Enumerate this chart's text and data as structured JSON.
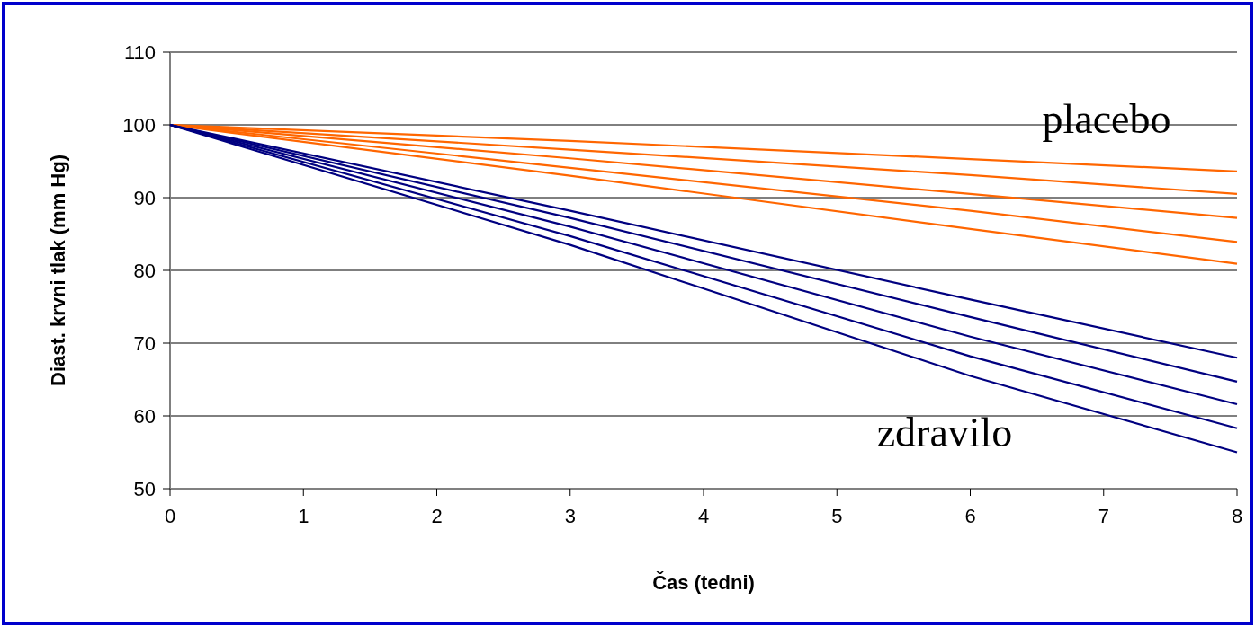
{
  "chart_data": {
    "type": "line",
    "xlabel": "Čas (tedni)",
    "ylabel": "Diast. krvni tlak (mm Hg)",
    "x": [
      0,
      3,
      6,
      8
    ],
    "xlim": [
      0,
      8
    ],
    "xticks": [
      0,
      1,
      2,
      3,
      4,
      5,
      6,
      7,
      8
    ],
    "ylim": [
      50,
      110
    ],
    "yticks": [
      50,
      60,
      70,
      80,
      90,
      100,
      110
    ],
    "grid": "y",
    "marker": "none",
    "line_style": "solid",
    "series": [
      {
        "color": "#ff6600",
        "values": [
          100,
          97.8,
          95.3,
          93.6
        ]
      },
      {
        "color": "#ff6600",
        "values": [
          100,
          96.6,
          93.1,
          90.5
        ]
      },
      {
        "color": "#ff6600",
        "values": [
          100,
          95.4,
          90.5,
          87.2
        ]
      },
      {
        "color": "#ff6600",
        "values": [
          100,
          94.1,
          88.2,
          83.9
        ]
      },
      {
        "color": "#ff6600",
        "values": [
          100,
          93.0,
          85.7,
          80.9
        ]
      },
      {
        "color": "#000080",
        "values": [
          100,
          88.2,
          76.0,
          68.0
        ]
      },
      {
        "color": "#000080",
        "values": [
          100,
          87.2,
          73.6,
          64.7
        ]
      },
      {
        "color": "#000080",
        "values": [
          100,
          86.0,
          70.9,
          61.6
        ]
      },
      {
        "color": "#000080",
        "values": [
          100,
          84.7,
          68.2,
          58.3
        ]
      },
      {
        "color": "#000080",
        "values": [
          100,
          83.5,
          65.5,
          55.0
        ]
      }
    ],
    "annotations": [
      "placebo",
      "zdravilo"
    ]
  }
}
